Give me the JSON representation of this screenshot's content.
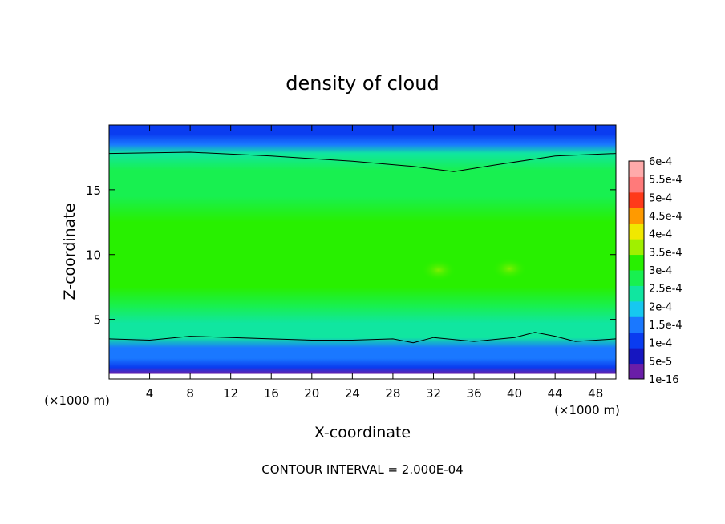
{
  "chart_data": {
    "type": "heatmap",
    "title": "density of cloud",
    "xlabel": "X-coordinate",
    "ylabel": "Z-coordinate",
    "x_unit": "(×1000 m)",
    "xlim": [
      0,
      50
    ],
    "ylim": [
      0.4,
      20
    ],
    "x_ticks": [
      4,
      8,
      12,
      16,
      20,
      24,
      28,
      32,
      36,
      40,
      44,
      48
    ],
    "y_ticks": [
      5,
      10,
      15
    ],
    "footer": "CONTOUR INTERVAL = 2.000E-04",
    "contour_interval": 0.0002,
    "colorbar": {
      "labels": [
        "1e-16",
        "5e-5",
        "1e-4",
        "1.5e-4",
        "2e-4",
        "2.5e-4",
        "3e-4",
        "3.5e-4",
        "4e-4",
        "4.5e-4",
        "5e-4",
        "5.5e-4",
        "6e-4"
      ],
      "colors": [
        "#6a1ea8",
        "#1616c0",
        "#0a3cf0",
        "#1a78ff",
        "#16c8f0",
        "#10e6a0",
        "#18f050",
        "#28f000",
        "#a0f000",
        "#f0e800",
        "#ff9a00",
        "#ff3a1a",
        "#ff7a7a",
        "#ffaaaa"
      ]
    },
    "levels": [
      {
        "z": 19.3,
        "value": 6e-05
      },
      {
        "z": 18.5,
        "value": 0.00014
      },
      {
        "z": 17.8,
        "value": 0.0002
      },
      {
        "z": 16.5,
        "value": 0.00026
      },
      {
        "z": 14.5,
        "value": 0.00029
      },
      {
        "z": 12.5,
        "value": 0.00031
      },
      {
        "z": 10.5,
        "value": 0.00032
      },
      {
        "z": 9.0,
        "value": 0.00033
      },
      {
        "z": 7.5,
        "value": 0.00031
      },
      {
        "z": 6.0,
        "value": 0.00028
      },
      {
        "z": 4.7,
        "value": 0.00024
      },
      {
        "z": 3.6,
        "value": 0.0002
      },
      {
        "z": 2.8,
        "value": 0.00015
      },
      {
        "z": 2.0,
        "value": 0.0001
      },
      {
        "z": 1.3,
        "value": 5e-05
      },
      {
        "z": 0.8,
        "value": 0.0
      }
    ],
    "upper_contour": {
      "level": 0.0002,
      "x": [
        0,
        8,
        16,
        24,
        30,
        34,
        38,
        44,
        50
      ],
      "z": [
        17.8,
        17.9,
        17.6,
        17.2,
        16.8,
        16.4,
        16.9,
        17.6,
        17.8
      ]
    },
    "lower_contour": {
      "level": 0.0002,
      "x": [
        0,
        4,
        8,
        12,
        16,
        20,
        24,
        28,
        30,
        32,
        36,
        40,
        42,
        44,
        46,
        50
      ],
      "z": [
        3.5,
        3.4,
        3.7,
        3.6,
        3.5,
        3.4,
        3.4,
        3.5,
        3.2,
        3.6,
        3.3,
        3.6,
        4.0,
        3.7,
        3.3,
        3.5
      ]
    },
    "maxima": [
      {
        "x": 32.5,
        "z": 8.8,
        "value": 0.00036
      },
      {
        "x": 39.5,
        "z": 8.9,
        "value": 0.00035
      }
    ]
  }
}
